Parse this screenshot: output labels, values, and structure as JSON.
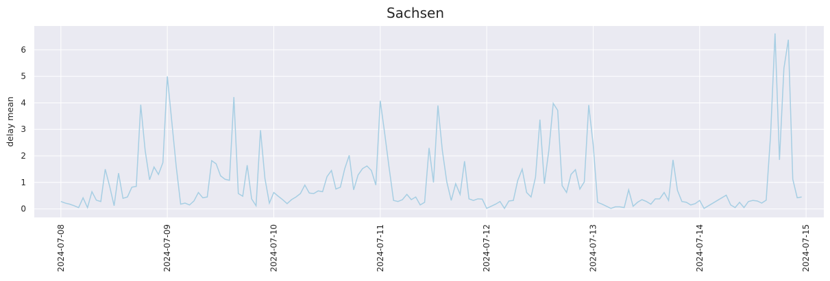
{
  "chart_data": {
    "type": "line",
    "title": "Sachsen",
    "xlabel": "",
    "ylabel": "delay mean",
    "x_unit": "date",
    "x_ticks": [
      "2024-07-08",
      "2024-07-09",
      "2024-07-10",
      "2024-07-11",
      "2024-07-12",
      "2024-07-13",
      "2024-07-14",
      "2024-07-15"
    ],
    "y_ticks": [
      0,
      1,
      2,
      3,
      4,
      5,
      6
    ],
    "xlim": [
      "2024-07-07 18:00",
      "2024-07-15 04:00"
    ],
    "ylim": [
      -0.32,
      6.9
    ],
    "grid": true,
    "line_color": "#a6cee3",
    "background_color": "#eaeaf2",
    "series": [
      {
        "x": [
          "2024-07-08 00:00",
          "2024-07-08 01:00",
          "2024-07-08 02:00",
          "2024-07-08 03:00",
          "2024-07-08 04:00",
          "2024-07-08 05:00",
          "2024-07-08 06:00",
          "2024-07-08 07:00",
          "2024-07-08 08:00",
          "2024-07-08 09:00",
          "2024-07-08 10:00",
          "2024-07-08 11:00",
          "2024-07-08 12:00",
          "2024-07-08 13:00",
          "2024-07-08 14:00",
          "2024-07-08 15:00",
          "2024-07-08 16:00",
          "2024-07-08 17:00",
          "2024-07-08 18:00",
          "2024-07-08 19:00",
          "2024-07-08 20:00",
          "2024-07-08 21:00",
          "2024-07-08 22:00",
          "2024-07-08 23:00",
          "2024-07-09 00:00",
          "2024-07-09 01:00",
          "2024-07-09 02:00",
          "2024-07-09 03:00",
          "2024-07-09 04:00",
          "2024-07-09 05:00",
          "2024-07-09 06:00",
          "2024-07-09 07:00",
          "2024-07-09 08:00",
          "2024-07-09 09:00",
          "2024-07-09 10:00",
          "2024-07-09 11:00",
          "2024-07-09 12:00",
          "2024-07-09 13:00",
          "2024-07-09 14:00",
          "2024-07-09 15:00",
          "2024-07-09 16:00",
          "2024-07-09 17:00",
          "2024-07-09 18:00",
          "2024-07-09 19:00",
          "2024-07-09 20:00",
          "2024-07-09 21:00",
          "2024-07-09 22:00",
          "2024-07-09 23:00",
          "2024-07-10 00:00",
          "2024-07-10 01:00",
          "2024-07-10 02:00",
          "2024-07-10 03:00",
          "2024-07-10 04:00",
          "2024-07-10 05:00",
          "2024-07-10 06:00",
          "2024-07-10 07:00",
          "2024-07-10 08:00",
          "2024-07-10 09:00",
          "2024-07-10 10:00",
          "2024-07-10 11:00",
          "2024-07-10 12:00",
          "2024-07-10 13:00",
          "2024-07-10 14:00",
          "2024-07-10 15:00",
          "2024-07-10 16:00",
          "2024-07-10 17:00",
          "2024-07-10 18:00",
          "2024-07-10 19:00",
          "2024-07-10 20:00",
          "2024-07-10 21:00",
          "2024-07-10 22:00",
          "2024-07-10 23:00",
          "2024-07-11 00:00",
          "2024-07-11 01:00",
          "2024-07-11 02:00",
          "2024-07-11 03:00",
          "2024-07-11 04:00",
          "2024-07-11 05:00",
          "2024-07-11 06:00",
          "2024-07-11 07:00",
          "2024-07-11 08:00",
          "2024-07-11 09:00",
          "2024-07-11 10:00",
          "2024-07-11 11:00",
          "2024-07-11 12:00",
          "2024-07-11 13:00",
          "2024-07-11 14:00",
          "2024-07-11 15:00",
          "2024-07-11 16:00",
          "2024-07-11 17:00",
          "2024-07-11 18:00",
          "2024-07-11 19:00",
          "2024-07-11 20:00",
          "2024-07-11 21:00",
          "2024-07-11 22:00",
          "2024-07-11 23:00",
          "2024-07-12 00:00",
          "2024-07-12 01:00",
          "2024-07-12 02:00",
          "2024-07-12 03:00",
          "2024-07-12 04:00",
          "2024-07-12 05:00",
          "2024-07-12 06:00",
          "2024-07-12 07:00",
          "2024-07-12 08:00",
          "2024-07-12 09:00",
          "2024-07-12 10:00",
          "2024-07-12 11:00",
          "2024-07-12 12:00",
          "2024-07-12 13:00",
          "2024-07-12 14:00",
          "2024-07-12 15:00",
          "2024-07-12 16:00",
          "2024-07-12 17:00",
          "2024-07-12 18:00",
          "2024-07-12 19:00",
          "2024-07-12 20:00",
          "2024-07-12 21:00",
          "2024-07-12 22:00",
          "2024-07-12 23:00",
          "2024-07-13 00:00",
          "2024-07-13 01:00",
          "2024-07-13 02:00",
          "2024-07-13 03:00",
          "2024-07-13 04:00",
          "2024-07-13 05:00",
          "2024-07-13 06:00",
          "2024-07-13 07:00",
          "2024-07-13 08:00",
          "2024-07-13 09:00",
          "2024-07-13 10:00",
          "2024-07-13 11:00",
          "2024-07-13 12:00",
          "2024-07-13 13:00",
          "2024-07-13 14:00",
          "2024-07-13 15:00",
          "2024-07-13 16:00",
          "2024-07-13 17:00",
          "2024-07-13 18:00",
          "2024-07-13 19:00",
          "2024-07-13 20:00",
          "2024-07-13 21:00",
          "2024-07-13 22:00",
          "2024-07-13 23:00",
          "2024-07-14 00:00",
          "2024-07-14 01:00",
          "2024-07-14 02:00",
          "2024-07-14 03:00",
          "2024-07-14 04:00",
          "2024-07-14 05:00",
          "2024-07-14 06:00",
          "2024-07-14 07:00",
          "2024-07-14 08:00",
          "2024-07-14 09:00",
          "2024-07-14 10:00",
          "2024-07-14 11:00",
          "2024-07-14 12:00",
          "2024-07-14 13:00",
          "2024-07-14 14:00",
          "2024-07-14 15:00",
          "2024-07-14 16:00",
          "2024-07-14 17:00",
          "2024-07-14 18:00",
          "2024-07-14 19:00",
          "2024-07-14 20:00",
          "2024-07-14 21:00",
          "2024-07-14 22:00",
          "2024-07-14 23:00"
        ],
        "y": [
          0.28,
          0.22,
          0.18,
          0.12,
          0.05,
          0.42,
          0.05,
          0.65,
          0.33,
          0.28,
          1.5,
          0.85,
          0.12,
          1.35,
          0.4,
          0.45,
          0.82,
          0.85,
          3.93,
          2.2,
          1.1,
          1.58,
          1.3,
          1.75,
          5.0,
          3.3,
          1.6,
          0.18,
          0.22,
          0.15,
          0.3,
          0.62,
          0.42,
          0.45,
          1.82,
          1.7,
          1.25,
          1.12,
          1.08,
          4.22,
          0.58,
          0.48,
          1.65,
          0.38,
          0.12,
          2.97,
          1.15,
          0.22,
          0.62,
          0.48,
          0.35,
          0.2,
          0.35,
          0.45,
          0.58,
          0.9,
          0.6,
          0.58,
          0.68,
          0.65,
          1.22,
          1.45,
          0.75,
          0.82,
          1.52,
          2.02,
          0.72,
          1.28,
          1.52,
          1.62,
          1.45,
          0.9,
          4.08,
          2.85,
          1.55,
          0.32,
          0.28,
          0.35,
          0.55,
          0.35,
          0.45,
          0.15,
          0.25,
          2.3,
          1.0,
          3.9,
          2.2,
          1.02,
          0.32,
          0.95,
          0.55,
          1.8,
          0.38,
          0.32,
          0.38,
          0.37,
          0.02,
          0.1,
          0.18,
          0.28,
          0.02,
          0.3,
          0.32,
          1.08,
          1.5,
          0.62,
          0.45,
          1.2,
          3.37,
          0.95,
          2.2,
          3.98,
          3.72,
          0.88,
          0.62,
          1.3,
          1.48,
          0.75,
          1.02,
          3.92,
          2.42,
          0.25,
          0.18,
          0.1,
          0.02,
          0.08,
          0.08,
          0.05,
          0.72,
          0.1,
          0.25,
          0.35,
          0.28,
          0.18,
          0.38,
          0.38,
          0.62,
          0.32,
          1.85,
          0.7,
          0.28,
          0.25,
          0.15,
          0.2,
          0.32,
          0.02,
          0.12,
          0.22,
          0.32,
          0.42,
          0.52,
          0.15,
          0.05,
          0.25,
          0.05,
          0.28,
          0.32,
          0.3,
          0.22,
          0.33,
          2.8,
          6.62,
          1.85,
          5.3,
          6.38,
          1.12,
          0.42,
          0.45
        ]
      }
    ]
  }
}
